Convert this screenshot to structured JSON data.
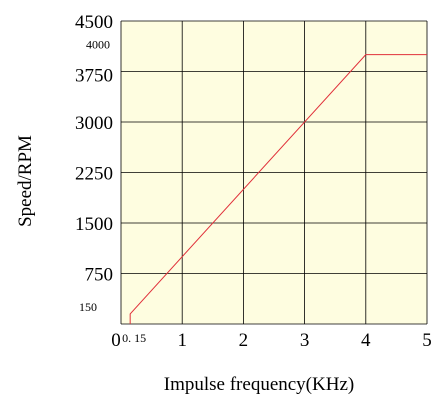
{
  "chart_data": {
    "type": "line",
    "title": "",
    "xlabel": "Impulse frequency(KHz)",
    "ylabel": "Speed/RPM",
    "xlim": [
      0,
      5
    ],
    "ylim": [
      0,
      4500
    ],
    "x_ticks": [
      {
        "value": 0,
        "label": "0"
      },
      {
        "value": 0.15,
        "label": "0. 15",
        "small": true
      },
      {
        "value": 1,
        "label": "1"
      },
      {
        "value": 2,
        "label": "2"
      },
      {
        "value": 3,
        "label": "3"
      },
      {
        "value": 4,
        "label": "4"
      },
      {
        "value": 5,
        "label": "5"
      }
    ],
    "y_ticks": [
      {
        "value": 150,
        "label": "150",
        "small": true
      },
      {
        "value": 750,
        "label": "750"
      },
      {
        "value": 1500,
        "label": "1500"
      },
      {
        "value": 2250,
        "label": "2250"
      },
      {
        "value": 3000,
        "label": "3000"
      },
      {
        "value": 3750,
        "label": "3750"
      },
      {
        "value": 4000,
        "label": "4000",
        "small": true
      },
      {
        "value": 4500,
        "label": "4500"
      }
    ],
    "grid_x": [
      0,
      1,
      2,
      3,
      4,
      5
    ],
    "grid_y": [
      0,
      750,
      1500,
      2250,
      3000,
      3750,
      4500
    ],
    "grid": true,
    "series": [
      {
        "color": "#e0303a",
        "x": [
          0.15,
          0.15,
          4,
          5
        ],
        "y": [
          0,
          150,
          4000,
          4000
        ]
      }
    ],
    "colors": {
      "plot_background": "#fefde0",
      "grid": "#000000"
    }
  }
}
